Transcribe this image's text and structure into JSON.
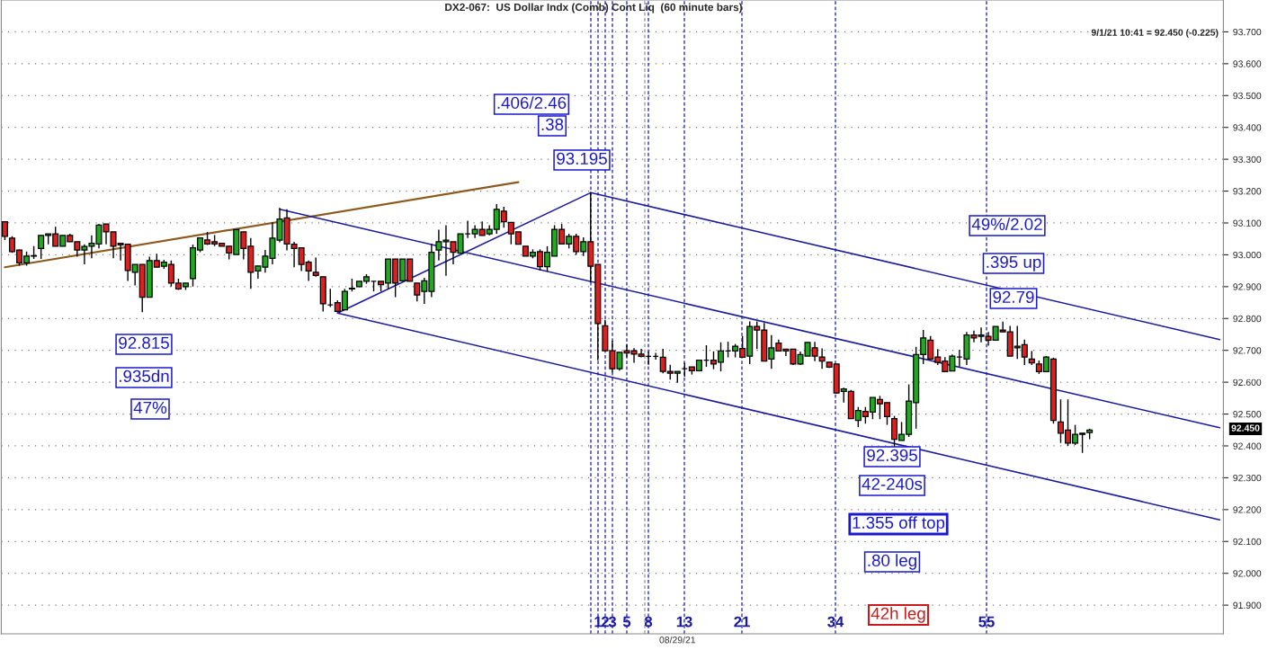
{
  "chart_data": {
    "type": "candlestick",
    "title": "DX2-067:  US Dollar Indx (Comb) Cont Liq  (60 minute bars)",
    "categories": [
      null,
      null,
      null,
      null,
      null,
      null,
      null,
      null,
      null,
      null,
      null,
      null,
      null,
      null,
      null,
      null,
      null,
      null,
      null,
      null,
      null,
      null,
      null,
      null,
      null,
      null,
      null,
      null,
      null,
      null,
      null,
      null,
      null,
      null,
      null,
      null,
      null,
      null,
      null,
      null,
      null,
      null,
      null,
      null,
      null,
      null,
      null,
      null,
      null,
      null,
      null,
      null,
      null,
      null,
      null,
      null,
      null,
      null,
      null,
      null,
      null,
      null,
      null,
      null,
      null,
      null,
      null,
      null,
      null,
      null,
      null,
      null,
      null,
      null,
      null,
      null,
      null,
      null,
      null,
      null,
      null,
      null,
      null,
      null,
      null,
      null,
      null,
      null,
      null,
      null,
      null,
      null,
      null,
      "08/29/21",
      null,
      null,
      null,
      null,
      null,
      null,
      null,
      null,
      null,
      null,
      null,
      null,
      null,
      null,
      null,
      null,
      null,
      null,
      null,
      null,
      null,
      null,
      null,
      null,
      null,
      null,
      null,
      null,
      null,
      null,
      null,
      null,
      null,
      null,
      null,
      null,
      null,
      null,
      null,
      null,
      null,
      null,
      null,
      null,
      null,
      null,
      null,
      null,
      null,
      null,
      null,
      null,
      null,
      null,
      null,
      null,
      null,
      null,
      null,
      null,
      null,
      null,
      null,
      null,
      null,
      null,
      null,
      null,
      null,
      null,
      null,
      null,
      null,
      null,
      null
    ],
    "ohlc": [
      [
        93.104,
        93.104,
        93.046,
        93.058
      ],
      [
        93.052,
        93.058,
        93.006,
        93.01
      ],
      [
        93.015,
        93.017,
        92.966,
        92.975
      ],
      [
        92.975,
        93.01,
        92.966,
        92.996
      ],
      [
        92.996,
        93.027,
        92.987,
        92.997
      ],
      [
        93.02,
        93.061,
        92.987,
        93.061
      ],
      [
        93.061,
        93.066,
        93.033,
        93.066
      ],
      [
        93.066,
        93.088,
        93.027,
        93.027
      ],
      [
        93.027,
        93.061,
        93.027,
        93.061
      ],
      [
        93.061,
        93.066,
        93.041,
        93.041
      ],
      [
        93.041,
        93.041,
        92.994,
        93.015
      ],
      [
        93.015,
        93.033,
        92.97,
        93.026
      ],
      [
        93.027,
        93.061,
        92.989,
        93.036
      ],
      [
        93.034,
        93.097,
        93.02,
        93.093
      ],
      [
        93.097,
        93.097,
        93.033,
        93.072
      ],
      [
        93.072,
        93.072,
        92.989,
        93.027
      ],
      [
        93.036,
        93.036,
        92.982,
        93.031
      ],
      [
        93.033,
        93.033,
        92.918,
        92.951
      ],
      [
        92.945,
        92.97,
        92.904,
        92.97
      ],
      [
        92.97,
        92.97,
        92.82,
        92.867
      ],
      [
        92.867,
        92.994,
        92.867,
        92.982
      ],
      [
        92.982,
        93.003,
        92.961,
        92.961
      ],
      [
        92.964,
        92.984,
        92.956,
        92.977
      ],
      [
        92.97,
        92.982,
        92.9,
        92.911
      ],
      [
        92.911,
        92.925,
        92.89,
        92.893
      ],
      [
        92.9,
        92.911,
        92.89,
        92.911
      ],
      [
        92.925,
        93.032,
        92.9,
        93.022
      ],
      [
        93.015,
        93.053,
        93.008,
        93.053
      ],
      [
        93.047,
        93.072,
        93.031,
        93.034
      ],
      [
        93.041,
        93.062,
        93.027,
        93.034
      ],
      [
        93.036,
        93.036,
        93.027,
        93.027
      ],
      [
        93.027,
        93.027,
        92.986,
        93.006
      ],
      [
        93.001,
        93.079,
        93.001,
        93.079
      ],
      [
        93.072,
        93.072,
        92.986,
        93.02
      ],
      [
        93.027,
        93.053,
        92.893,
        92.945
      ],
      [
        92.949,
        92.965,
        92.925,
        92.965
      ],
      [
        92.961,
        93.015,
        92.944,
        92.996
      ],
      [
        92.989,
        93.102,
        92.97,
        93.052
      ],
      [
        93.046,
        93.147,
        93.039,
        93.112
      ],
      [
        93.116,
        93.143,
        93.014,
        93.034
      ],
      [
        93.033,
        93.041,
        92.961,
        93.02
      ],
      [
        93.022,
        93.022,
        92.949,
        92.97
      ],
      [
        92.977,
        92.982,
        92.918,
        92.949
      ],
      [
        92.945,
        92.991,
        92.931,
        92.935
      ],
      [
        92.931,
        92.931,
        92.822,
        92.846
      ],
      [
        92.843,
        92.893,
        92.836,
        92.843
      ],
      [
        92.85,
        92.857,
        92.82,
        92.822
      ],
      [
        92.827,
        92.893,
        92.827,
        92.885
      ],
      [
        92.893,
        92.925,
        92.885,
        92.895
      ],
      [
        92.9,
        92.917,
        92.9,
        92.917
      ],
      [
        92.917,
        92.939,
        92.909,
        92.931
      ],
      [
        92.917,
        92.917,
        92.885,
        92.917
      ],
      [
        92.917,
        92.917,
        92.885,
        92.906
      ],
      [
        92.911,
        92.987,
        92.893,
        92.987
      ],
      [
        92.987,
        92.987,
        92.867,
        92.911
      ],
      [
        92.918,
        92.987,
        92.918,
        92.987
      ],
      [
        92.987,
        92.987,
        92.917,
        92.917
      ],
      [
        92.911,
        92.911,
        92.854,
        92.874
      ],
      [
        92.885,
        92.928,
        92.846,
        92.918
      ],
      [
        92.885,
        93.034,
        92.867,
        93.008
      ],
      [
        93.015,
        93.079,
        92.982,
        93.041
      ],
      [
        93.041,
        93.093,
        92.934,
        93.046
      ],
      [
        93.041,
        93.041,
        92.97,
        93.008
      ],
      [
        93.005,
        93.066,
        93.005,
        93.066
      ],
      [
        93.066,
        93.107,
        93.053,
        93.066
      ],
      [
        93.066,
        93.093,
        93.053,
        93.08
      ],
      [
        93.08,
        93.105,
        93.061,
        93.061
      ],
      [
        93.066,
        93.093,
        93.061,
        93.08
      ],
      [
        93.08,
        93.159,
        93.066,
        93.143
      ],
      [
        93.137,
        93.151,
        93.085,
        93.104
      ],
      [
        93.102,
        93.102,
        93.033,
        93.066
      ],
      [
        93.072,
        93.072,
        93.033,
        93.033
      ],
      [
        93.027,
        93.027,
        92.996,
        92.996
      ],
      [
        92.996,
        93.017,
        92.989,
        93.008
      ],
      [
        93.01,
        93.017,
        92.951,
        92.963
      ],
      [
        92.963,
        93.027,
        92.947,
        93.008
      ],
      [
        92.996,
        93.093,
        92.996,
        93.08
      ],
      [
        93.08,
        93.097,
        93.034,
        93.034
      ],
      [
        93.034,
        93.066,
        93.02,
        93.058
      ],
      [
        93.058,
        93.066,
        93.0,
        93.01
      ],
      [
        93.01,
        93.055,
        92.996,
        93.041
      ],
      [
        93.041,
        93.195,
        92.914,
        92.964
      ],
      [
        92.97,
        92.97,
        92.669,
        92.784
      ],
      [
        92.777,
        92.796,
        92.699,
        92.699
      ],
      [
        92.699,
        92.73,
        92.631,
        92.642
      ],
      [
        92.642,
        92.694,
        92.636,
        92.694
      ],
      [
        92.699,
        92.718,
        92.678,
        92.692
      ],
      [
        92.699,
        92.707,
        92.661,
        92.688
      ],
      [
        92.688,
        92.705,
        92.678,
        92.681
      ],
      [
        92.681,
        92.697,
        92.655,
        92.681
      ],
      [
        92.681,
        92.692,
        92.671,
        92.681
      ],
      [
        92.678,
        92.705,
        92.628,
        92.634
      ],
      [
        92.634,
        92.655,
        92.608,
        92.628
      ],
      [
        92.628,
        92.634,
        92.598,
        92.634
      ],
      [
        92.642,
        92.661,
        92.617,
        92.642
      ],
      [
        92.648,
        92.648,
        92.624,
        92.636
      ],
      [
        92.636,
        92.669,
        92.634,
        92.669
      ],
      [
        92.669,
        92.716,
        92.648,
        92.669
      ],
      [
        92.669,
        92.697,
        92.641,
        92.657
      ],
      [
        92.663,
        92.725,
        92.634,
        92.698
      ],
      [
        92.698,
        92.727,
        92.678,
        92.698
      ],
      [
        92.698,
        92.72,
        92.678,
        92.713
      ],
      [
        92.706,
        92.745,
        92.678,
        92.678
      ],
      [
        92.682,
        92.791,
        92.657,
        92.775
      ],
      [
        92.775,
        92.791,
        92.704,
        92.764
      ],
      [
        92.764,
        92.786,
        92.666,
        92.666
      ],
      [
        92.673,
        92.748,
        92.642,
        92.708
      ],
      [
        92.723,
        92.734,
        92.698,
        92.698
      ],
      [
        92.704,
        92.704,
        92.682,
        92.698
      ],
      [
        92.704,
        92.704,
        92.654,
        92.657
      ],
      [
        92.657,
        92.696,
        92.654,
        92.687
      ],
      [
        92.682,
        92.725,
        92.682,
        92.725
      ],
      [
        92.708,
        92.727,
        92.666,
        92.682
      ],
      [
        92.679,
        92.706,
        92.642,
        92.666
      ],
      [
        92.663,
        92.663,
        92.645,
        92.647
      ],
      [
        92.657,
        92.657,
        92.565,
        92.566
      ],
      [
        92.571,
        92.583,
        92.536,
        92.579
      ],
      [
        92.571,
        92.576,
        92.486,
        92.486
      ],
      [
        92.48,
        92.522,
        92.459,
        92.511
      ],
      [
        92.508,
        92.522,
        92.47,
        92.492
      ],
      [
        92.506,
        92.552,
        92.484,
        92.552
      ],
      [
        92.546,
        92.557,
        92.484,
        92.532
      ],
      [
        92.536,
        92.536,
        92.466,
        92.492
      ],
      [
        92.486,
        92.494,
        92.395,
        92.421
      ],
      [
        92.417,
        92.475,
        92.417,
        92.436
      ],
      [
        92.436,
        92.593,
        92.428,
        92.541
      ],
      [
        92.536,
        92.711,
        92.454,
        92.687
      ],
      [
        92.687,
        92.764,
        92.657,
        92.739
      ],
      [
        92.732,
        92.745,
        92.673,
        92.673
      ],
      [
        92.679,
        92.704,
        92.654,
        92.662
      ],
      [
        92.666,
        92.679,
        92.633,
        92.633
      ],
      [
        92.635,
        92.687,
        92.635,
        92.682
      ],
      [
        92.679,
        92.701,
        92.649,
        92.679
      ],
      [
        92.673,
        92.758,
        92.654,
        92.748
      ],
      [
        92.748,
        92.762,
        92.725,
        92.739
      ],
      [
        92.744,
        92.772,
        92.725,
        92.748
      ],
      [
        92.744,
        92.758,
        92.715,
        92.732
      ],
      [
        92.732,
        92.775,
        92.732,
        92.775
      ],
      [
        92.764,
        92.79,
        92.758,
        92.758
      ],
      [
        92.758,
        92.777,
        92.682,
        92.682
      ],
      [
        92.708,
        92.777,
        92.673,
        92.713
      ],
      [
        92.718,
        92.734,
        92.654,
        92.679
      ],
      [
        92.673,
        92.698,
        92.654,
        92.661
      ],
      [
        92.657,
        92.668,
        92.626,
        92.633
      ],
      [
        92.633,
        92.682,
        92.633,
        92.679
      ],
      [
        92.673,
        92.677,
        92.47,
        92.48
      ],
      [
        92.475,
        92.546,
        92.409,
        92.44
      ],
      [
        92.45,
        92.546,
        92.4,
        92.409
      ],
      [
        92.409,
        92.466,
        92.403,
        92.436
      ],
      [
        92.436,
        92.44,
        92.378,
        92.44
      ],
      [
        92.442,
        92.454,
        92.421,
        92.45
      ],
      null,
      null,
      null,
      null,
      null,
      null,
      null,
      null,
      null,
      null,
      null,
      null,
      null,
      null,
      null,
      null,
      null,
      null
    ],
    "series": [
      {
        "type": "line",
        "color": "#8b5a1e",
        "values": [
          92.961,
          null,
          null,
          null,
          null,
          null,
          null,
          null,
          null,
          null,
          null,
          null,
          null,
          null,
          null,
          null,
          null,
          null,
          null,
          null,
          null,
          null,
          null,
          null,
          null,
          null,
          null,
          null,
          null,
          null,
          null,
          null,
          null,
          null,
          null,
          null,
          null,
          null,
          null,
          null,
          null,
          null,
          null,
          null,
          null,
          null,
          null,
          null,
          null,
          null,
          null,
          null,
          null,
          null,
          null,
          null,
          null,
          null,
          null,
          null,
          null,
          null,
          null,
          null,
          null,
          null,
          null,
          null,
          null,
          null,
          null,
          93.228,
          null,
          null,
          null,
          null,
          null,
          null,
          null,
          null,
          null,
          null,
          null,
          null,
          null,
          null,
          null,
          null,
          null,
          null,
          null,
          null,
          null,
          null,
          null,
          null,
          null,
          null,
          null,
          null,
          null,
          null,
          null,
          null,
          null,
          null,
          null,
          null,
          null,
          null,
          null,
          null,
          null,
          null,
          null,
          null,
          null,
          null,
          null,
          null,
          null,
          null,
          null,
          null,
          null,
          null,
          null,
          null,
          null,
          null,
          null,
          null,
          null,
          null,
          null,
          null,
          null,
          null,
          null,
          null,
          null,
          null,
          null,
          null,
          null,
          null,
          null,
          null,
          null,
          null,
          null,
          null,
          null,
          null,
          null,
          null,
          null,
          null,
          null,
          null,
          null,
          null,
          null,
          null,
          null,
          null,
          null,
          null,
          null
        ]
      },
      {
        "type": "line",
        "color": "#1a1aa0",
        "values": [
          null,
          null,
          null,
          null,
          null,
          null,
          null,
          null,
          null,
          null,
          null,
          null,
          null,
          null,
          null,
          null,
          null,
          null,
          null,
          null,
          null,
          null,
          null,
          null,
          null,
          null,
          null,
          null,
          null,
          null,
          null,
          null,
          null,
          null,
          null,
          null,
          null,
          null,
          null,
          null,
          null,
          null,
          null,
          null,
          null,
          null,
          null,
          null,
          null,
          null,
          null,
          null,
          null,
          null,
          null,
          null,
          null,
          null,
          null,
          null,
          null,
          null,
          null,
          null,
          null,
          null,
          null,
          null,
          null,
          null,
          null,
          null,
          null,
          null,
          null,
          null,
          null,
          null,
          null,
          null,
          null,
          93.195,
          null,
          null,
          null,
          null,
          null,
          null,
          null,
          null,
          null,
          null,
          null,
          null,
          null,
          null,
          null,
          null,
          null,
          null,
          null,
          null,
          null,
          null,
          null,
          null,
          null,
          null,
          null,
          null,
          null,
          null,
          null,
          null,
          null,
          null,
          null,
          null,
          null,
          null,
          null,
          null,
          null,
          null,
          null,
          null,
          null,
          null,
          null,
          null,
          null,
          null,
          null,
          null,
          null,
          null,
          null,
          null,
          null,
          null,
          null,
          null,
          null,
          null,
          null,
          null,
          null,
          null,
          null,
          null,
          null,
          null,
          null,
          null,
          null,
          null,
          null,
          null,
          null,
          null,
          null,
          null,
          null,
          null,
          null,
          null,
          null,
          null,
          92.734
        ]
      },
      {
        "type": "line",
        "color": "#1a1aa0",
        "values": [
          null,
          null,
          null,
          null,
          null,
          null,
          null,
          null,
          null,
          null,
          null,
          null,
          null,
          null,
          null,
          null,
          null,
          null,
          null,
          null,
          null,
          null,
          null,
          null,
          null,
          null,
          null,
          null,
          null,
          null,
          null,
          null,
          null,
          null,
          null,
          null,
          null,
          null,
          93.143,
          null,
          null,
          null,
          null,
          null,
          null,
          null,
          null,
          null,
          null,
          null,
          null,
          null,
          null,
          null,
          null,
          null,
          null,
          null,
          null,
          null,
          null,
          null,
          null,
          null,
          null,
          null,
          null,
          null,
          null,
          null,
          null,
          null,
          null,
          null,
          null,
          null,
          null,
          null,
          null,
          null,
          null,
          null,
          null,
          null,
          null,
          null,
          null,
          null,
          null,
          null,
          null,
          null,
          null,
          null,
          null,
          null,
          null,
          null,
          null,
          null,
          null,
          null,
          null,
          null,
          null,
          null,
          null,
          null,
          null,
          null,
          null,
          null,
          null,
          null,
          null,
          null,
          null,
          null,
          null,
          null,
          null,
          null,
          null,
          null,
          null,
          null,
          null,
          null,
          null,
          null,
          null,
          null,
          null,
          null,
          null,
          null,
          null,
          null,
          null,
          null,
          null,
          null,
          null,
          null,
          null,
          null,
          null,
          null,
          null,
          null,
          null,
          null,
          null,
          null,
          null,
          null,
          null,
          null,
          null,
          null,
          null,
          null,
          null,
          null,
          null,
          null,
          null,
          null,
          92.457
        ]
      },
      {
        "type": "line",
        "color": "#1a1aa0",
        "values": [
          null,
          null,
          null,
          null,
          null,
          null,
          null,
          null,
          null,
          null,
          null,
          null,
          null,
          null,
          null,
          null,
          null,
          null,
          null,
          null,
          null,
          null,
          null,
          null,
          null,
          null,
          null,
          null,
          null,
          null,
          null,
          null,
          null,
          null,
          null,
          null,
          null,
          null,
          null,
          null,
          null,
          null,
          null,
          null,
          null,
          null,
          92.817,
          null,
          null,
          null,
          null,
          null,
          null,
          null,
          null,
          null,
          null,
          null,
          null,
          null,
          null,
          null,
          null,
          null,
          null,
          null,
          null,
          null,
          null,
          null,
          null,
          null,
          null,
          null,
          null,
          null,
          null,
          null,
          null,
          null,
          null,
          null,
          null,
          null,
          null,
          null,
          null,
          null,
          null,
          null,
          null,
          null,
          null,
          null,
          null,
          null,
          null,
          null,
          null,
          null,
          null,
          null,
          null,
          null,
          null,
          null,
          null,
          null,
          null,
          null,
          null,
          null,
          null,
          null,
          null,
          null,
          null,
          null,
          null,
          null,
          null,
          null,
          null,
          null,
          null,
          null,
          null,
          null,
          null,
          null,
          null,
          null,
          null,
          null,
          null,
          null,
          null,
          null,
          null,
          null,
          null,
          null,
          null,
          null,
          null,
          null,
          null,
          null,
          null,
          null,
          null,
          null,
          null,
          null,
          null,
          null,
          null,
          null,
          null,
          null,
          null,
          null,
          null,
          null,
          null,
          null,
          null,
          null,
          92.168
        ]
      },
      {
        "type": "line",
        "color": "#1a1aa0",
        "values": [
          null,
          null,
          null,
          null,
          null,
          null,
          null,
          null,
          null,
          null,
          null,
          null,
          null,
          null,
          null,
          null,
          null,
          null,
          null,
          null,
          null,
          null,
          null,
          null,
          null,
          null,
          null,
          null,
          null,
          null,
          null,
          null,
          null,
          null,
          null,
          null,
          null,
          null,
          null,
          null,
          null,
          null,
          null,
          null,
          null,
          null,
          92.817,
          null,
          null,
          null,
          null,
          null,
          null,
          null,
          null,
          null,
          null,
          null,
          null,
          null,
          null,
          null,
          null,
          null,
          null,
          null,
          null,
          null,
          null,
          null,
          null,
          null,
          null,
          null,
          null,
          null,
          null,
          null,
          null,
          null,
          null,
          93.195,
          null,
          null,
          null,
          null,
          null,
          null,
          null,
          null,
          null,
          null,
          null,
          null,
          null,
          null,
          null,
          null,
          null,
          null,
          null,
          null,
          null,
          null,
          null,
          null,
          null,
          null,
          null,
          null,
          null,
          null,
          null,
          null,
          null,
          null,
          null,
          null,
          null,
          null,
          null,
          null,
          null,
          null,
          null,
          null,
          null,
          null,
          null,
          null,
          null,
          null,
          null,
          null,
          null,
          null,
          null,
          null,
          null,
          null,
          null,
          null,
          null,
          null,
          null,
          null,
          null,
          null,
          null,
          null,
          null,
          null,
          null,
          null,
          null,
          null,
          null,
          null,
          null,
          null,
          null,
          null,
          null,
          null,
          null,
          null,
          null,
          null,
          null
        ]
      }
    ],
    "annotations": [
      ".406/2.46",
      ".38",
      "93.195",
      "49%/2.02",
      ".395 up",
      "92.79",
      "92.815",
      ".935dn",
      "47%",
      "92.395",
      "42-240s",
      "1.355 off top",
      ".80 leg",
      "42h leg",
      "9/1/21 10:41 = 92.450 (-0.225)",
      "92.450",
      "1",
      "2",
      "3",
      "5",
      "8",
      "13",
      "21",
      "34",
      "55"
    ],
    "ylim": [
      91.81,
      93.8
    ],
    "yticks": [
      {
        "value": 91.9,
        "label": "91.900"
      },
      {
        "value": 92.0,
        "label": "92.000"
      },
      {
        "value": 92.1,
        "label": "92.100"
      },
      {
        "value": 92.2,
        "label": "92.200"
      },
      {
        "value": 92.3,
        "label": "92.300"
      },
      {
        "value": 92.4,
        "label": "92.400"
      },
      {
        "value": 92.5,
        "label": "92.500"
      },
      {
        "value": 92.6,
        "label": "92.600"
      },
      {
        "value": 92.7,
        "label": "92.700"
      },
      {
        "value": 92.8,
        "label": "92.800"
      },
      {
        "value": 92.9,
        "label": "92.900"
      },
      {
        "value": 93.0,
        "label": "93.000"
      },
      {
        "value": 93.1,
        "label": "93.100"
      },
      {
        "value": 93.2,
        "label": "93.200"
      },
      {
        "value": 93.3,
        "label": "93.300"
      },
      {
        "value": 93.4,
        "label": "93.400"
      },
      {
        "value": 93.5,
        "label": "93.500"
      },
      {
        "value": 93.6,
        "label": "93.600"
      },
      {
        "value": 93.7,
        "label": "93.700"
      }
    ],
    "grid": "y"
  }
}
